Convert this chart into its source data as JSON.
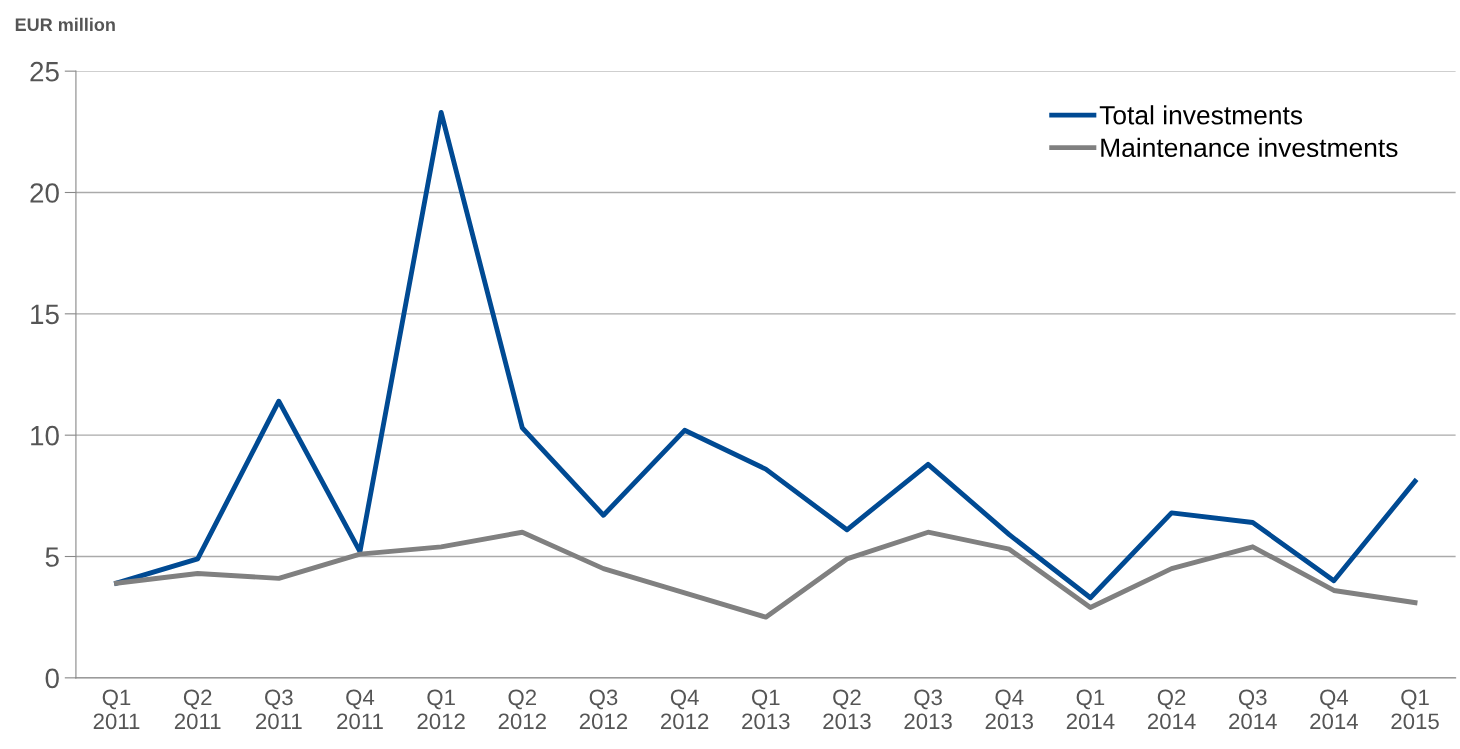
{
  "chart_data": {
    "type": "line",
    "ylabel": "EUR million",
    "categories": [
      "Q1\n2011",
      "Q2\n2011",
      "Q3\n2011",
      "Q4\n2011",
      "Q1\n2012",
      "Q2\n2012",
      "Q3\n2012",
      "Q4\n2012",
      "Q1\n2013",
      "Q2\n2013",
      "Q3\n2013",
      "Q4\n2013",
      "Q1\n2014",
      "Q2\n2014",
      "Q3\n2014",
      "Q4\n2014",
      "Q1\n2015"
    ],
    "series": [
      {
        "name": "Total investments",
        "color": "#004a93",
        "values": [
          3.9,
          4.9,
          11.4,
          5.2,
          23.3,
          10.3,
          6.7,
          10.2,
          8.6,
          6.1,
          8.8,
          5.9,
          3.3,
          6.8,
          6.4,
          4.0,
          8.1
        ]
      },
      {
        "name": "Maintenance investments",
        "color": "#808080",
        "values": [
          3.9,
          4.3,
          4.1,
          5.1,
          5.4,
          6.0,
          4.5,
          3.5,
          2.5,
          4.9,
          6.0,
          5.3,
          2.9,
          4.5,
          5.4,
          3.6,
          3.1
        ]
      }
    ],
    "ylim": [
      0,
      25
    ],
    "yticks": [
      0,
      5,
      10,
      15,
      20,
      25
    ],
    "grid": "y",
    "legend": "top right",
    "marker": "none",
    "line_style": "solid"
  }
}
